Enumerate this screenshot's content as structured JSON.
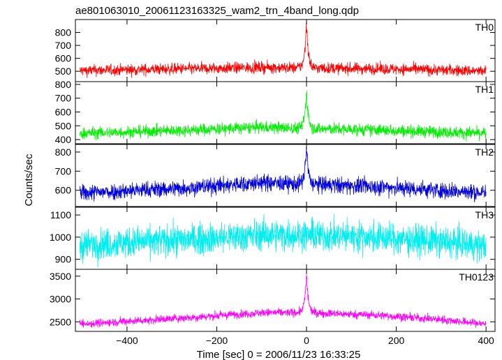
{
  "chart_data": {
    "type": "line",
    "title": "ae801063010_20061123163325_wam2_trn_4band_long.qdp",
    "xlabel": "Time [sec] 0 = 2006/11/23 16:33:25",
    "ylabel": "Counts/sec",
    "xlim": [
      -515,
      420
    ],
    "xticks": [
      "−400",
      "−200",
      "0",
      "200",
      "400"
    ],
    "xtick_values": [
      -400,
      -200,
      0,
      200,
      400
    ],
    "grid": false,
    "panels": [
      {
        "name": "TH0",
        "color": "#ff0000",
        "ylim": [
          420,
          900
        ],
        "yticks": [
          "500",
          "600",
          "700",
          "800"
        ],
        "ytick_values": [
          500,
          600,
          700,
          800
        ],
        "baseline": [
          [
            -505,
            505
          ],
          [
            -250,
            520
          ],
          [
            -100,
            530
          ],
          [
            0,
            525
          ],
          [
            150,
            520
          ],
          [
            300,
            510
          ],
          [
            400,
            500
          ]
        ],
        "noise": 22,
        "spike": {
          "x": 0,
          "peak": 900,
          "width": 4
        }
      },
      {
        "name": "TH1",
        "color": "#00ee00",
        "ylim": [
          370,
          820
        ],
        "yticks": [
          "400",
          "500",
          "600",
          "700",
          "800"
        ],
        "ytick_values": [
          400,
          500,
          600,
          700,
          800
        ],
        "baseline": [
          [
            -505,
            445
          ],
          [
            -250,
            470
          ],
          [
            -100,
            490
          ],
          [
            0,
            480
          ],
          [
            150,
            470
          ],
          [
            300,
            455
          ],
          [
            400,
            445
          ]
        ],
        "noise": 22,
        "spike": {
          "x": 0,
          "peak": 790,
          "width": 4
        }
      },
      {
        "name": "TH2",
        "color": "#0000dd",
        "ylim": [
          515,
          840
        ],
        "yticks": [
          "600",
          "700",
          "800"
        ],
        "ytick_values": [
          600,
          700,
          800
        ],
        "baseline": [
          [
            -505,
            585
          ],
          [
            -250,
            615
          ],
          [
            -100,
            640
          ],
          [
            0,
            630
          ],
          [
            150,
            620
          ],
          [
            300,
            600
          ],
          [
            400,
            585
          ]
        ],
        "noise": 22,
        "spike": {
          "x": 0,
          "peak": 845,
          "width": 4
        }
      },
      {
        "name": "TH3",
        "color": "#00eeee",
        "ylim": [
          855,
          1135
        ],
        "yticks": [
          "900",
          "1000",
          "1100"
        ],
        "ytick_values": [
          900,
          1000,
          1100
        ],
        "baseline": [
          [
            -505,
            965
          ],
          [
            -250,
            990
          ],
          [
            -100,
            1010
          ],
          [
            0,
            1010
          ],
          [
            150,
            1000
          ],
          [
            300,
            980
          ],
          [
            400,
            960
          ]
        ],
        "noise": 35,
        "spike": null
      },
      {
        "name": "TH0123",
        "color": "#ff00ff",
        "ylim": [
          2290,
          3650
        ],
        "yticks": [
          "2500",
          "3000",
          "3500"
        ],
        "ytick_values": [
          2500,
          3000,
          3500
        ],
        "baseline": [
          [
            -505,
            2450
          ],
          [
            -250,
            2600
          ],
          [
            -100,
            2700
          ],
          [
            0,
            2700
          ],
          [
            150,
            2650
          ],
          [
            300,
            2550
          ],
          [
            400,
            2450
          ]
        ],
        "noise": 45,
        "spike": {
          "x": 0,
          "peak": 3620,
          "width": 4
        }
      }
    ]
  }
}
